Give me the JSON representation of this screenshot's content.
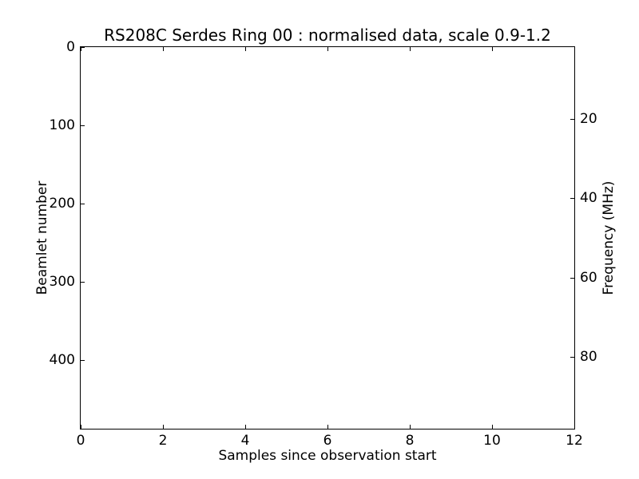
{
  "window": {
    "background": "#ffffff",
    "foreground": "#000000"
  },
  "chart_data": {
    "type": "heatmap",
    "title": "RS208C Serdes Ring 00 : normalised data, scale 0.9-1.2",
    "xlabel": "Samples since observation start",
    "ylabel": "Beamlet number",
    "ylabel_right": "Frequency (MHz)",
    "xlim": [
      0,
      12
    ],
    "ylim": [
      0,
      488
    ],
    "ylim_right": [
      2,
      98
    ],
    "y_axis_inverted": true,
    "xticks": [
      0,
      2,
      4,
      6,
      8,
      10,
      12
    ],
    "yticks": [
      0,
      100,
      200,
      300,
      400
    ],
    "yticks_right": [
      20,
      40,
      60,
      80
    ],
    "tick_direction": "in",
    "grid": false,
    "legend": null,
    "series": [],
    "plot_area_content": "blank white (no visible data rendered)",
    "colors": {
      "spine": "#000000",
      "text": "#000000",
      "plot_background": "#ffffff"
    }
  }
}
